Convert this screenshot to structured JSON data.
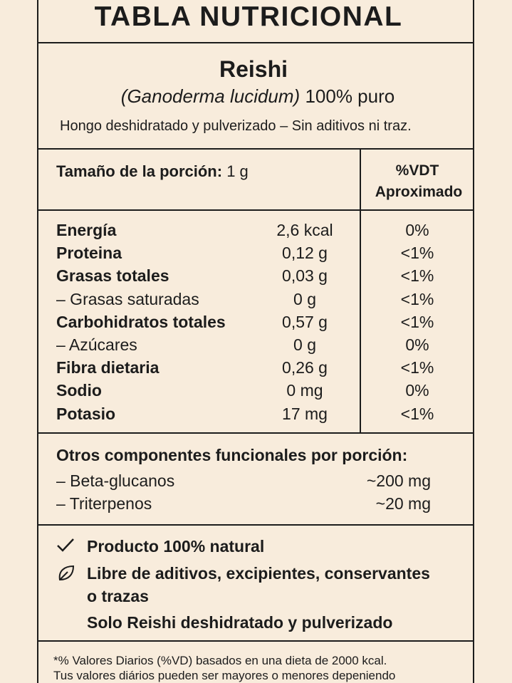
{
  "header": {
    "title": "TABLA NUTRICIONAL"
  },
  "product": {
    "name": "Reishi",
    "scientific_name": "(Ganoderma lucidum)",
    "purity": "100% puro",
    "description": "Hongo deshidratado y pulverizado – Sin aditivos ni traz."
  },
  "table": {
    "serving_label": "Tamaño de la porción:",
    "serving_size": "1 g",
    "dv_header": "%VDT",
    "dv_subheader": "Aproximado",
    "rows": [
      [
        "Energía",
        "2,6 kcal",
        "0%"
      ],
      [
        "Proteina",
        "0,12 g",
        "<1%"
      ],
      [
        "Grasas totales",
        "0,03 g",
        "<1%"
      ],
      [
        "– Grasas saturadas",
        "0 g",
        "<1%"
      ],
      [
        "Carbohidratos totales",
        "0,57 g",
        "<1%"
      ],
      [
        "– Azúcares",
        "0 g",
        "0%"
      ],
      [
        "Fibra dietaria",
        "0,26 g",
        "<1%"
      ],
      [
        "Sodio",
        "0 mg",
        "0%"
      ],
      [
        "Potasio",
        "17 mg",
        "<1%"
      ]
    ]
  },
  "functional": {
    "title": "Otros componentes funcionales por porción:",
    "items": [
      [
        "– Beta-glucanos",
        "~200 mg"
      ],
      [
        "– Triterpenos",
        "~20 mg"
      ]
    ]
  },
  "claims": [
    "Producto 100% natural",
    "Libre de aditivos, excipientes, conservantes",
    "o trazas",
    "Solo Reishi deshidratado y pulverizado"
  ],
  "footnote": [
    "*% Valores Diarios (%VD) basados en una dieta de 2000 kcal.",
    "Tus valores diários pueden ser mayores o menores depeniendo"
  ]
}
